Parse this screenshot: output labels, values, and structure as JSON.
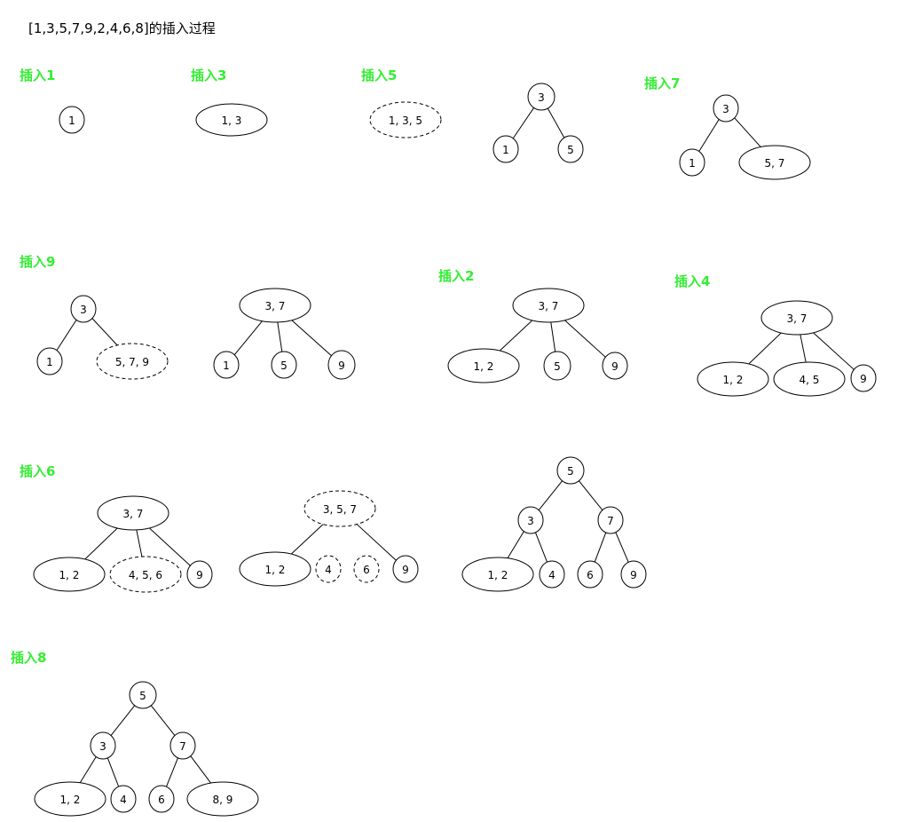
{
  "title": "[1,3,5,7,9,2,4,6,8]的插入过程",
  "steps": [
    {
      "label": "插入1",
      "trees": [
        {
          "nodes": [
            {
              "text": "1",
              "dashed": false
            }
          ],
          "edges": []
        }
      ]
    },
    {
      "label": "插入3",
      "trees": [
        {
          "nodes": [
            {
              "text": "1, 3",
              "dashed": false
            }
          ],
          "edges": []
        }
      ]
    },
    {
      "label": "插入5",
      "trees": [
        {
          "nodes": [
            {
              "text": "1, 3, 5",
              "dashed": true
            }
          ],
          "edges": []
        },
        {
          "nodes": [
            {
              "text": "3",
              "dashed": false
            },
            {
              "text": "1",
              "dashed": false
            },
            {
              "text": "5",
              "dashed": false
            }
          ],
          "edges": [
            [
              0,
              1
            ],
            [
              0,
              2
            ]
          ]
        }
      ]
    },
    {
      "label": "插入7",
      "trees": [
        {
          "nodes": [
            {
              "text": "3",
              "dashed": false
            },
            {
              "text": "1",
              "dashed": false
            },
            {
              "text": "5, 7",
              "dashed": false
            }
          ],
          "edges": [
            [
              0,
              1
            ],
            [
              0,
              2
            ]
          ]
        }
      ]
    },
    {
      "label": "插入9",
      "trees": [
        {
          "nodes": [
            {
              "text": "3",
              "dashed": false
            },
            {
              "text": "1",
              "dashed": false
            },
            {
              "text": "5, 7, 9",
              "dashed": true
            }
          ],
          "edges": [
            [
              0,
              1
            ],
            [
              0,
              2
            ]
          ]
        },
        {
          "nodes": [
            {
              "text": "3, 7",
              "dashed": false
            },
            {
              "text": "1",
              "dashed": false
            },
            {
              "text": "5",
              "dashed": false
            },
            {
              "text": "9",
              "dashed": false
            }
          ],
          "edges": [
            [
              0,
              1
            ],
            [
              0,
              2
            ],
            [
              0,
              3
            ]
          ]
        }
      ]
    },
    {
      "label": "插入2",
      "trees": [
        {
          "nodes": [
            {
              "text": "3, 7",
              "dashed": false
            },
            {
              "text": "1, 2",
              "dashed": false
            },
            {
              "text": "5",
              "dashed": false
            },
            {
              "text": "9",
              "dashed": false
            }
          ],
          "edges": [
            [
              0,
              1
            ],
            [
              0,
              2
            ],
            [
              0,
              3
            ]
          ]
        }
      ]
    },
    {
      "label": "插入4",
      "trees": [
        {
          "nodes": [
            {
              "text": "3, 7",
              "dashed": false
            },
            {
              "text": "1, 2",
              "dashed": false
            },
            {
              "text": "4, 5",
              "dashed": false
            },
            {
              "text": "9",
              "dashed": false
            }
          ],
          "edges": [
            [
              0,
              1
            ],
            [
              0,
              2
            ],
            [
              0,
              3
            ]
          ]
        }
      ]
    },
    {
      "label": "插入6",
      "trees": [
        {
          "nodes": [
            {
              "text": "3, 7",
              "dashed": false
            },
            {
              "text": "1, 2",
              "dashed": false
            },
            {
              "text": "4, 5, 6",
              "dashed": true
            },
            {
              "text": "9",
              "dashed": false
            }
          ],
          "edges": [
            [
              0,
              1
            ],
            [
              0,
              2
            ],
            [
              0,
              3
            ]
          ]
        },
        {
          "nodes": [
            {
              "text": "3, 5, 7",
              "dashed": true
            },
            {
              "text": "1, 2",
              "dashed": false
            },
            {
              "text": "4",
              "dashed": true
            },
            {
              "text": "6",
              "dashed": true
            },
            {
              "text": "9",
              "dashed": false
            }
          ],
          "edges": [
            [
              0,
              1
            ],
            [
              0,
              4
            ]
          ]
        },
        {
          "nodes": [
            {
              "text": "5",
              "dashed": false
            },
            {
              "text": "3",
              "dashed": false
            },
            {
              "text": "7",
              "dashed": false
            },
            {
              "text": "1, 2",
              "dashed": false
            },
            {
              "text": "4",
              "dashed": false
            },
            {
              "text": "6",
              "dashed": false
            },
            {
              "text": "9",
              "dashed": false
            }
          ],
          "edges": [
            [
              0,
              1
            ],
            [
              0,
              2
            ],
            [
              1,
              3
            ],
            [
              1,
              4
            ],
            [
              2,
              5
            ],
            [
              2,
              6
            ]
          ]
        }
      ]
    },
    {
      "label": "插入8",
      "trees": [
        {
          "nodes": [
            {
              "text": "5",
              "dashed": false
            },
            {
              "text": "3",
              "dashed": false
            },
            {
              "text": "7",
              "dashed": false
            },
            {
              "text": "1, 2",
              "dashed": false
            },
            {
              "text": "4",
              "dashed": false
            },
            {
              "text": "6",
              "dashed": false
            },
            {
              "text": "8, 9",
              "dashed": false
            }
          ],
          "edges": [
            [
              0,
              1
            ],
            [
              0,
              2
            ],
            [
              1,
              3
            ],
            [
              1,
              4
            ],
            [
              2,
              5
            ],
            [
              2,
              6
            ]
          ]
        }
      ]
    }
  ]
}
